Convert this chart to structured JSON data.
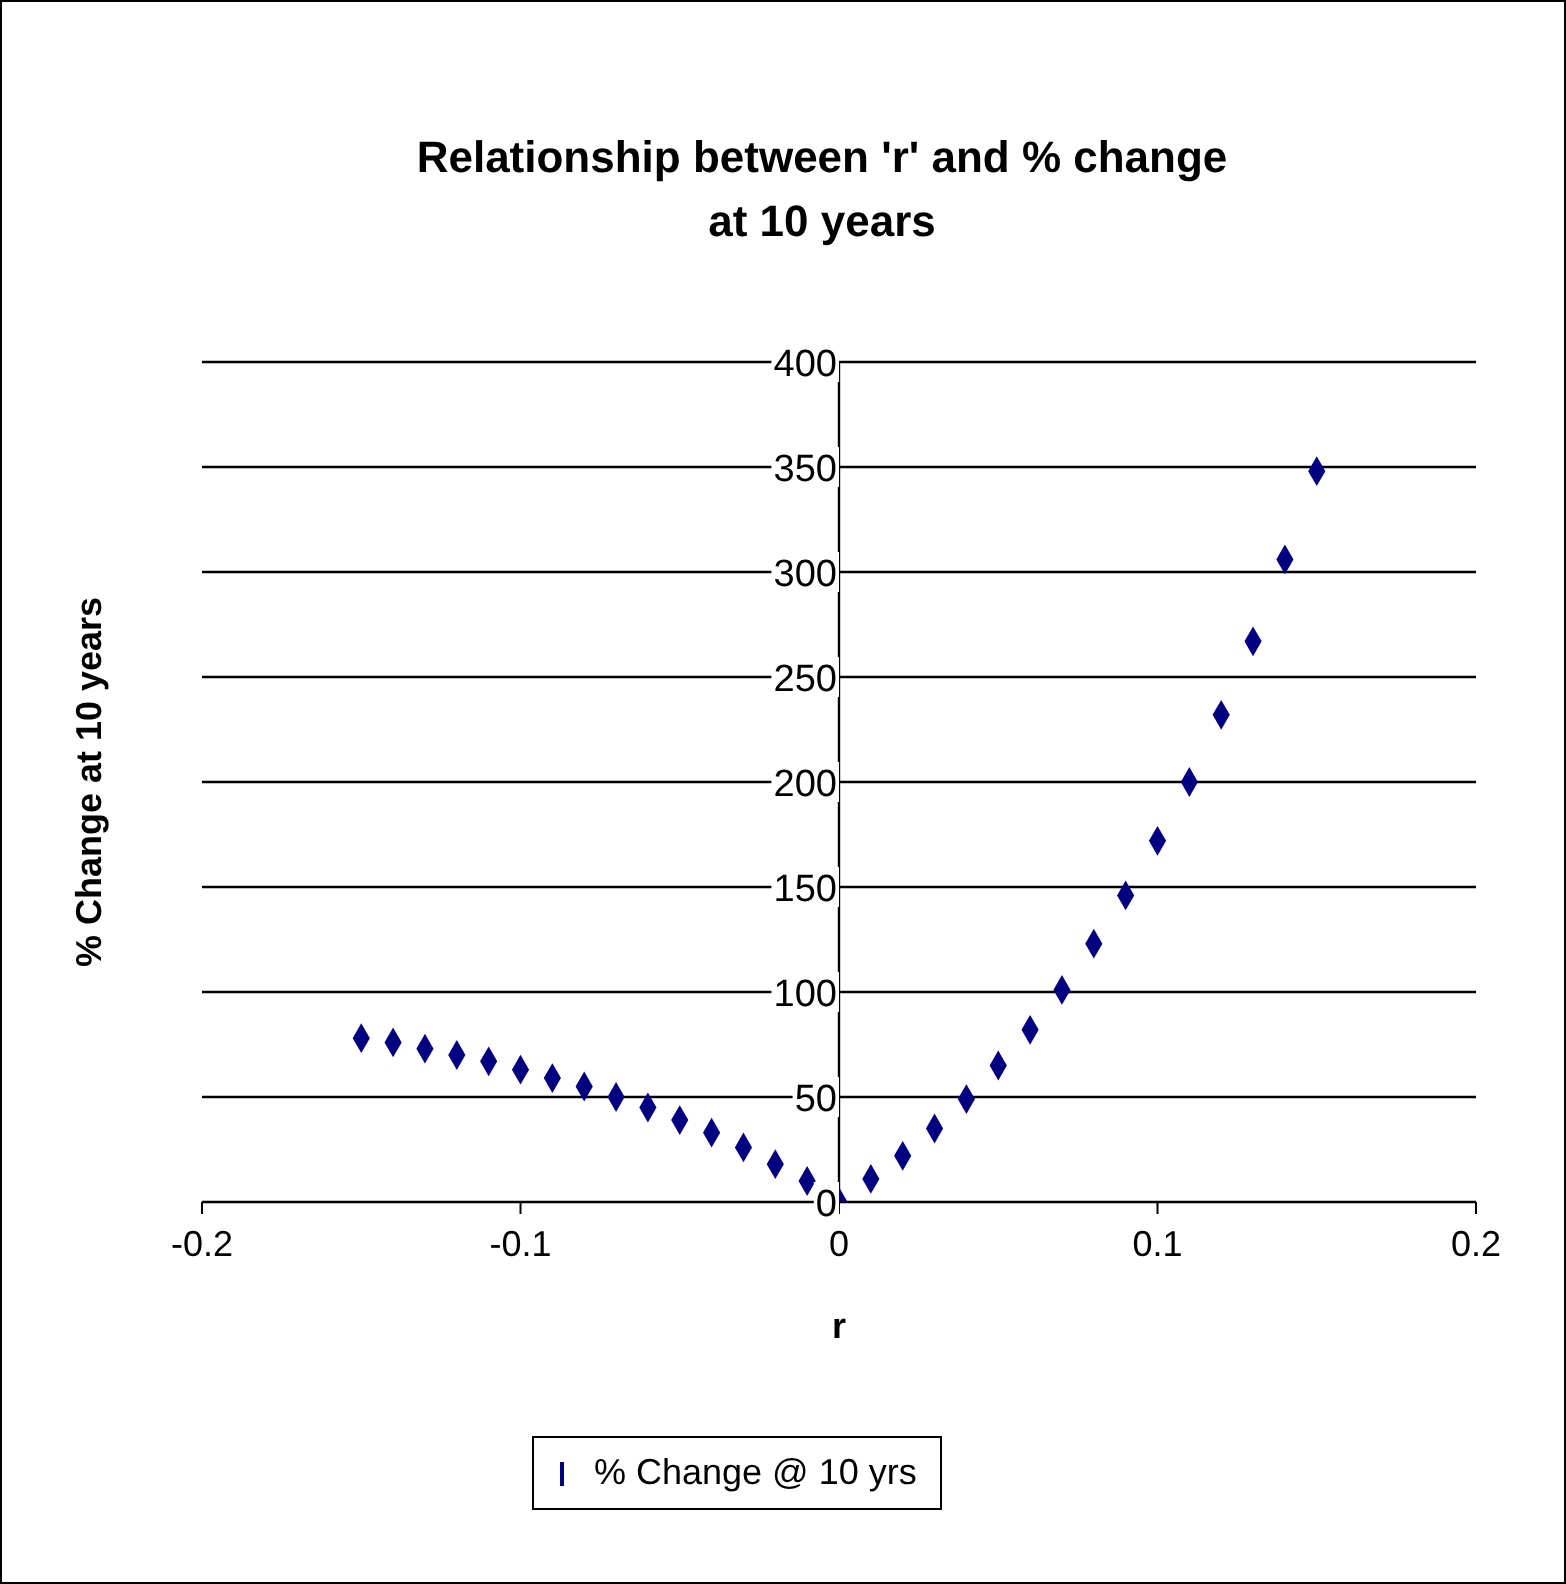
{
  "chart_data": {
    "type": "scatter",
    "title": "Relationship between 'r' and % change at 10 years",
    "xlabel": "r",
    "ylabel": "% Change at 10 years",
    "x": [
      -0.15,
      -0.14,
      -0.13,
      -0.12,
      -0.11,
      -0.1,
      -0.09,
      -0.08,
      -0.07,
      -0.06,
      -0.05,
      -0.04,
      -0.03,
      -0.02,
      -0.01,
      0,
      0.01,
      0.02,
      0.03,
      0.04,
      0.05,
      0.06,
      0.07,
      0.08,
      0.09,
      0.1,
      0.11,
      0.12,
      0.13,
      0.14,
      0.15
    ],
    "series": [
      {
        "name": "% Change @ 10 yrs",
        "color": "#000080",
        "values": [
          78,
          76,
          73,
          70,
          67,
          63,
          59,
          55,
          50,
          45,
          39,
          33,
          26,
          18,
          10,
          0,
          11,
          22,
          35,
          49,
          65,
          82,
          101,
          123,
          146,
          172,
          200,
          232,
          267,
          306,
          348
        ]
      }
    ],
    "xlim": [
      -0.2,
      0.2
    ],
    "xticks": [
      -0.2,
      -0.1,
      0,
      0.1,
      0.2
    ],
    "ylim": [
      0,
      400
    ],
    "yticks": [
      0,
      50,
      100,
      150,
      200,
      250,
      300,
      350,
      400
    ],
    "grid": "y",
    "legend": "bottom",
    "marker": "diamond"
  }
}
